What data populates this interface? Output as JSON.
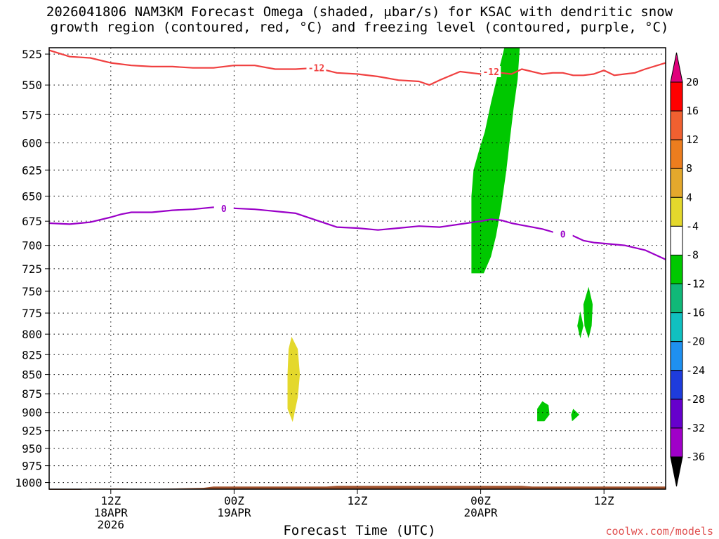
{
  "title_lines": [
    "2026041806 NAM3KM Forecast Omega (shaded, μbar/s) for KSAC with dendritic snow",
    "growth region (contoured, red, °C) and freezing level (contoured, purple, °C)"
  ],
  "credit": "coolwx.com/models",
  "chart_data": {
    "type": "time-height",
    "title": "2026041806 NAM3KM Forecast Omega (shaded, μbar/s) for KSAC with dendritic snow growth region (contoured, red, °C) and freezing level (contoured, purple, °C)",
    "xlabel": "Forecast Time (UTC)",
    "ylabel": "",
    "x_unit": "hours since 2026-04-18 06Z",
    "xlim": [
      0,
      60
    ],
    "y_unit": "hPa",
    "ylim": [
      1010,
      520
    ],
    "y_scale": "log-pressure (inverted)",
    "y_ticks": [
      525,
      550,
      575,
      600,
      625,
      650,
      675,
      700,
      725,
      750,
      775,
      800,
      825,
      850,
      875,
      900,
      925,
      950,
      975,
      1000
    ],
    "x_ticks": [
      {
        "hour": 6,
        "lines": [
          "12Z",
          "18APR",
          "2026"
        ]
      },
      {
        "hour": 18,
        "lines": [
          "00Z",
          "19APR"
        ]
      },
      {
        "hour": 30,
        "lines": [
          "12Z"
        ]
      },
      {
        "hour": 42,
        "lines": [
          "00Z",
          "20APR"
        ]
      },
      {
        "hour": 54,
        "lines": [
          "12Z"
        ]
      }
    ],
    "grid": true,
    "colorbar": {
      "levels": [
        20,
        16,
        12,
        8,
        4,
        -4,
        -8,
        -12,
        -16,
        -20,
        -24,
        -28,
        -32,
        -36
      ],
      "colors": [
        "#ff0000",
        "#f06030",
        "#ec7d1e",
        "#e4a82c",
        "#e4d82c",
        "#ffffff",
        "#00c800",
        "#10b878",
        "#10c0c0",
        "#1e90f0",
        "#1e3cdc",
        "#6600cc",
        "#a000c8",
        "#a0a0a0"
      ],
      "top_arrow_color": "#e0007c",
      "bottom_arrow_color": "#000000"
    },
    "dgz_contour": {
      "name": "-12",
      "color": "#f04040",
      "label_text": "-12",
      "label_hours": [
        26,
        43
      ],
      "points": [
        [
          0,
          522
        ],
        [
          2,
          527
        ],
        [
          4,
          528
        ],
        [
          6,
          532
        ],
        [
          8,
          534
        ],
        [
          10,
          535
        ],
        [
          12,
          535
        ],
        [
          14,
          536
        ],
        [
          16,
          536
        ],
        [
          18,
          534
        ],
        [
          20,
          534
        ],
        [
          22,
          537
        ],
        [
          24,
          537
        ],
        [
          26,
          536
        ],
        [
          28,
          540
        ],
        [
          30,
          541
        ],
        [
          32,
          543
        ],
        [
          34,
          546
        ],
        [
          36,
          547
        ],
        [
          37,
          550
        ],
        [
          38,
          546
        ],
        [
          40,
          539
        ],
        [
          41,
          540
        ],
        [
          42,
          541
        ],
        [
          43,
          539
        ],
        [
          44,
          540
        ],
        [
          45,
          541
        ],
        [
          46,
          537
        ],
        [
          47,
          539
        ],
        [
          48,
          541
        ],
        [
          49,
          540
        ],
        [
          50,
          540
        ],
        [
          51,
          542
        ],
        [
          52,
          542
        ],
        [
          53,
          541
        ],
        [
          54,
          538
        ],
        [
          55,
          542
        ],
        [
          56,
          541
        ],
        [
          57,
          540
        ],
        [
          58,
          537
        ],
        [
          60,
          532
        ]
      ]
    },
    "freezing_contour": {
      "name": "0",
      "color": "#9a00c8",
      "label_text": "0",
      "label_hours": [
        17,
        50
      ],
      "points": [
        [
          0,
          677
        ],
        [
          2,
          678
        ],
        [
          4,
          676
        ],
        [
          6,
          671
        ],
        [
          7,
          668
        ],
        [
          8,
          666
        ],
        [
          10,
          666
        ],
        [
          12,
          664
        ],
        [
          14,
          663
        ],
        [
          16,
          661
        ],
        [
          17,
          662
        ],
        [
          18,
          662
        ],
        [
          20,
          663
        ],
        [
          22,
          665
        ],
        [
          24,
          667
        ],
        [
          26,
          674
        ],
        [
          28,
          681
        ],
        [
          30,
          682
        ],
        [
          32,
          684
        ],
        [
          34,
          682
        ],
        [
          36,
          680
        ],
        [
          38,
          681
        ],
        [
          40,
          678
        ],
        [
          42,
          675
        ],
        [
          43,
          673
        ],
        [
          44,
          674
        ],
        [
          45,
          677
        ],
        [
          46,
          679
        ],
        [
          48,
          683
        ],
        [
          49,
          686
        ],
        [
          50,
          688
        ],
        [
          51,
          690
        ],
        [
          52,
          695
        ],
        [
          53,
          697
        ],
        [
          54,
          698
        ],
        [
          56,
          700
        ],
        [
          58,
          705
        ],
        [
          60,
          715
        ]
      ]
    },
    "shaded_regions": [
      {
        "name": "omega-main-ascent",
        "value_range": [
          -8,
          -4
        ],
        "color": "#00c800",
        "polygon": [
          [
            44.3,
            520
          ],
          [
            45.8,
            520
          ],
          [
            45.6,
            545
          ],
          [
            45.2,
            570
          ],
          [
            44.8,
            600
          ],
          [
            44.5,
            625
          ],
          [
            44.0,
            660
          ],
          [
            43.5,
            690
          ],
          [
            43.0,
            712
          ],
          [
            42.3,
            730
          ],
          [
            41.1,
            730
          ],
          [
            41.1,
            710
          ],
          [
            41.1,
            680
          ],
          [
            41.1,
            650
          ],
          [
            41.3,
            625
          ],
          [
            41.9,
            605
          ],
          [
            42.4,
            590
          ],
          [
            43.0,
            565
          ],
          [
            43.7,
            540
          ]
        ]
      },
      {
        "name": "omega-subsidence-cell",
        "value_range": [
          4,
          8
        ],
        "color": "#e4d82c",
        "polygon": [
          [
            23.6,
            803
          ],
          [
            24.2,
            818
          ],
          [
            24.4,
            850
          ],
          [
            24.2,
            880
          ],
          [
            23.7,
            913
          ],
          [
            23.2,
            895
          ],
          [
            23.2,
            850
          ],
          [
            23.3,
            818
          ]
        ]
      },
      {
        "name": "omega-ascent-cell-a",
        "value_range": [
          -8,
          -4
        ],
        "color": "#00c800",
        "polygon": [
          [
            52.5,
            745
          ],
          [
            52.9,
            765
          ],
          [
            52.8,
            790
          ],
          [
            52.5,
            805
          ],
          [
            52.1,
            790
          ],
          [
            52.0,
            765
          ]
        ]
      },
      {
        "name": "omega-ascent-cell-b",
        "value_range": [
          -8,
          -4
        ],
        "color": "#00c800",
        "polygon": [
          [
            51.7,
            773
          ],
          [
            52.0,
            790
          ],
          [
            51.7,
            805
          ],
          [
            51.4,
            790
          ]
        ]
      },
      {
        "name": "omega-ascent-cell-c",
        "value_range": [
          -8,
          -4
        ],
        "color": "#00c800",
        "polygon": [
          [
            47.5,
            912
          ],
          [
            47.5,
            895
          ],
          [
            48.0,
            885
          ],
          [
            48.6,
            890
          ],
          [
            48.7,
            903
          ],
          [
            48.2,
            912
          ]
        ]
      },
      {
        "name": "omega-ascent-cell-d",
        "value_range": [
          -8,
          -4
        ],
        "color": "#00c800",
        "polygon": [
          [
            51.0,
            895
          ],
          [
            51.6,
            903
          ],
          [
            50.9,
            912
          ],
          [
            50.8,
            903
          ]
        ]
      }
    ],
    "terrain": {
      "color": "#a0522d",
      "points": [
        [
          0,
          1011
        ],
        [
          3,
          1011
        ],
        [
          4,
          1009
        ],
        [
          7,
          1009
        ],
        [
          9,
          1010
        ],
        [
          12,
          1009
        ],
        [
          15,
          1008
        ],
        [
          16,
          1006
        ],
        [
          20,
          1006
        ],
        [
          27,
          1006
        ],
        [
          28,
          1005
        ],
        [
          46,
          1005
        ],
        [
          47,
          1006
        ],
        [
          60,
          1006
        ]
      ]
    }
  }
}
